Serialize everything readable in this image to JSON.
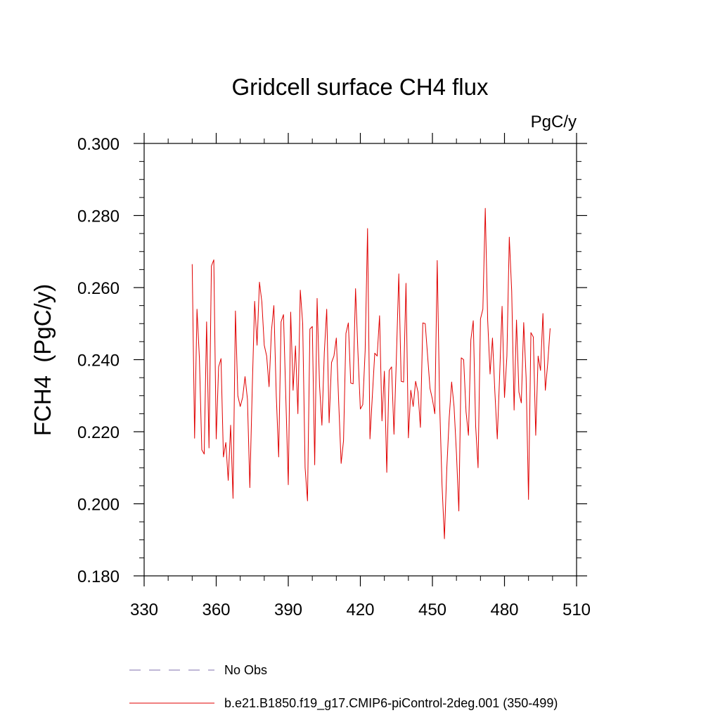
{
  "chart_data": {
    "type": "line",
    "title": "Gridcell surface CH4 flux",
    "units_label": "PgC/y",
    "ylabel": "FCH4  (PgC/y)",
    "xlabel": "",
    "xlim": [
      330,
      510
    ],
    "ylim": [
      0.18,
      0.3
    ],
    "xticks": [
      330,
      360,
      390,
      420,
      450,
      480,
      510
    ],
    "xtick_labels": [
      "330",
      "360",
      "390",
      "420",
      "450",
      "480",
      "510"
    ],
    "yticks": [
      0.18,
      0.2,
      0.22,
      0.24,
      0.26,
      0.28,
      0.3
    ],
    "ytick_labels": [
      "0.180",
      "0.200",
      "0.220",
      "0.240",
      "0.260",
      "0.280",
      "0.300"
    ],
    "grid": false,
    "legend_position": "bottom",
    "legend": [
      {
        "label": "No Obs",
        "color": "#7f6fae",
        "style": "dashed"
      },
      {
        "label": "b.e21.B1850.f19_g17.CMIP6-piControl-2deg.001 (350-499)",
        "color": "#e00000",
        "style": "solid"
      }
    ],
    "series": [
      {
        "name": "b.e21.B1850.f19_g17.CMIP6-piControl-2deg.001 (350-499)",
        "color": "#e00000",
        "x_start": 350,
        "x_step": 1,
        "values": [
          0.2665,
          0.2182,
          0.254,
          0.2405,
          0.215,
          0.2138,
          0.2505,
          0.2155,
          0.266,
          0.2677,
          0.218,
          0.238,
          0.2403,
          0.213,
          0.217,
          0.2065,
          0.2218,
          0.2015,
          0.2535,
          0.23,
          0.227,
          0.2295,
          0.2353,
          0.229,
          0.2045,
          0.232,
          0.2562,
          0.244,
          0.2615,
          0.256,
          0.244,
          0.241,
          0.2325,
          0.248,
          0.255,
          0.23,
          0.213,
          0.2505,
          0.2525,
          0.229,
          0.2053,
          0.2532,
          0.2315,
          0.2438,
          0.225,
          0.2593,
          0.25,
          0.21,
          0.2008,
          0.2485,
          0.2492,
          0.2108,
          0.257,
          0.233,
          0.2218,
          0.242,
          0.254,
          0.2225,
          0.2392,
          0.241,
          0.246,
          0.228,
          0.2112,
          0.2175,
          0.2473,
          0.2502,
          0.2335,
          0.2333,
          0.2597,
          0.242,
          0.2263,
          0.2275,
          0.2425,
          0.2764,
          0.218,
          0.23,
          0.2418,
          0.241,
          0.2522,
          0.223,
          0.2368,
          0.2087,
          0.237,
          0.238,
          0.2193,
          0.2405,
          0.2638,
          0.234,
          0.2338,
          0.2612,
          0.2183,
          0.2315,
          0.227,
          0.234,
          0.231,
          0.2212,
          0.2502,
          0.25,
          0.241,
          0.232,
          0.229,
          0.225,
          0.2675,
          0.228,
          0.2052,
          0.1903,
          0.21,
          0.224,
          0.2338,
          0.227,
          0.214,
          0.198,
          0.2405,
          0.24,
          0.2255,
          0.219,
          0.2455,
          0.2508,
          0.2215,
          0.21,
          0.2513,
          0.254,
          0.282,
          0.251,
          0.236,
          0.246,
          0.231,
          0.218,
          0.236,
          0.2548,
          0.2295,
          0.241,
          0.274,
          0.259,
          0.226,
          0.251,
          0.231,
          0.228,
          0.2503,
          0.235,
          0.2012,
          0.2475,
          0.2463,
          0.219,
          0.241,
          0.237,
          0.2528,
          0.2315,
          0.239,
          0.2487
        ]
      }
    ]
  }
}
